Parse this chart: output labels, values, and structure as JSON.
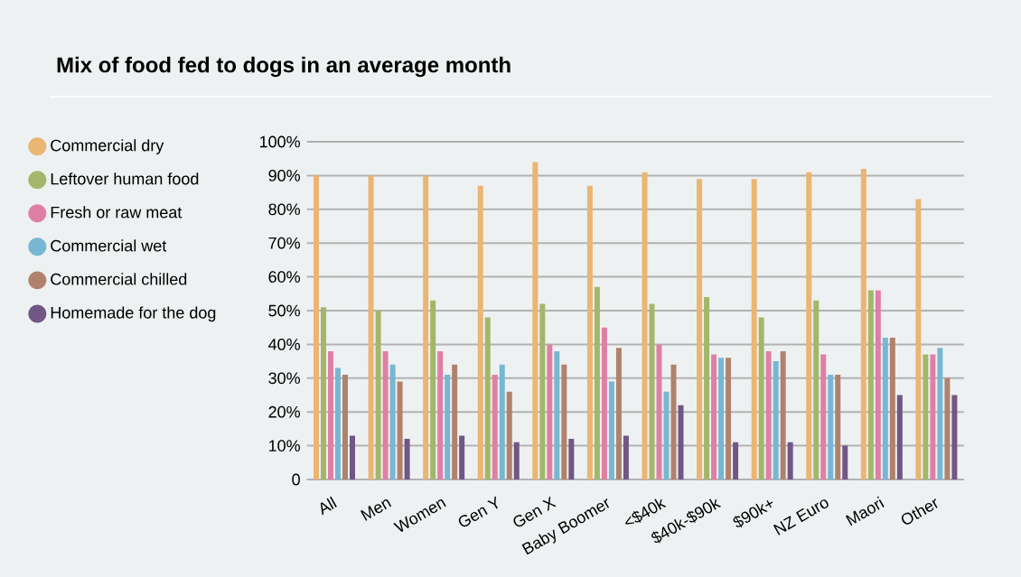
{
  "chart_data": {
    "type": "bar",
    "title": "Mix of food fed to dogs in an average month",
    "categories": [
      "All",
      "Men",
      "Women",
      "Gen Y",
      "Gen X",
      "Baby Boomer",
      "<$40k",
      "$40k-$90k",
      "$90k+",
      "NZ Euro",
      "Maori",
      "Other"
    ],
    "series": [
      {
        "name": "Commercial dry",
        "color": "#ebb572",
        "values": [
          90,
          90,
          90,
          87,
          94,
          87,
          91,
          89,
          89,
          91,
          92,
          83
        ]
      },
      {
        "name": "Leftover human food",
        "color": "#a3b76a",
        "values": [
          51,
          50,
          53,
          48,
          52,
          57,
          52,
          54,
          48,
          53,
          56,
          37
        ]
      },
      {
        "name": "Fresh or raw meat",
        "color": "#e07fa6",
        "values": [
          38,
          38,
          38,
          31,
          40,
          45,
          40,
          37,
          38,
          37,
          56,
          37
        ]
      },
      {
        "name": "Commercial wet",
        "color": "#77b7d2",
        "values": [
          33,
          34,
          31,
          34,
          38,
          29,
          26,
          36,
          35,
          31,
          42,
          39
        ]
      },
      {
        "name": "Commercial chilled",
        "color": "#b0826d",
        "values": [
          31,
          29,
          34,
          26,
          34,
          39,
          34,
          36,
          38,
          31,
          42,
          30
        ]
      },
      {
        "name": "Homemade for the dog",
        "color": "#715785",
        "values": [
          13,
          12,
          13,
          11,
          12,
          13,
          22,
          11,
          11,
          10,
          25,
          25
        ]
      }
    ],
    "ylim": [
      0,
      100
    ],
    "yticks": [
      0,
      {
        "value": 10,
        "label": "10%"
      },
      {
        "value": 20,
        "label": "20%"
      },
      {
        "value": 30,
        "label": "30%"
      },
      {
        "value": 40,
        "label": "40%"
      },
      {
        "value": 50,
        "label": "50%"
      },
      {
        "value": 60,
        "label": "60%"
      },
      {
        "value": 70,
        "label": "70%"
      },
      {
        "value": 80,
        "label": "80%"
      },
      {
        "value": 90,
        "label": "90%"
      },
      {
        "value": 100,
        "label": "100%"
      }
    ],
    "grid": "y",
    "legend": "left"
  }
}
